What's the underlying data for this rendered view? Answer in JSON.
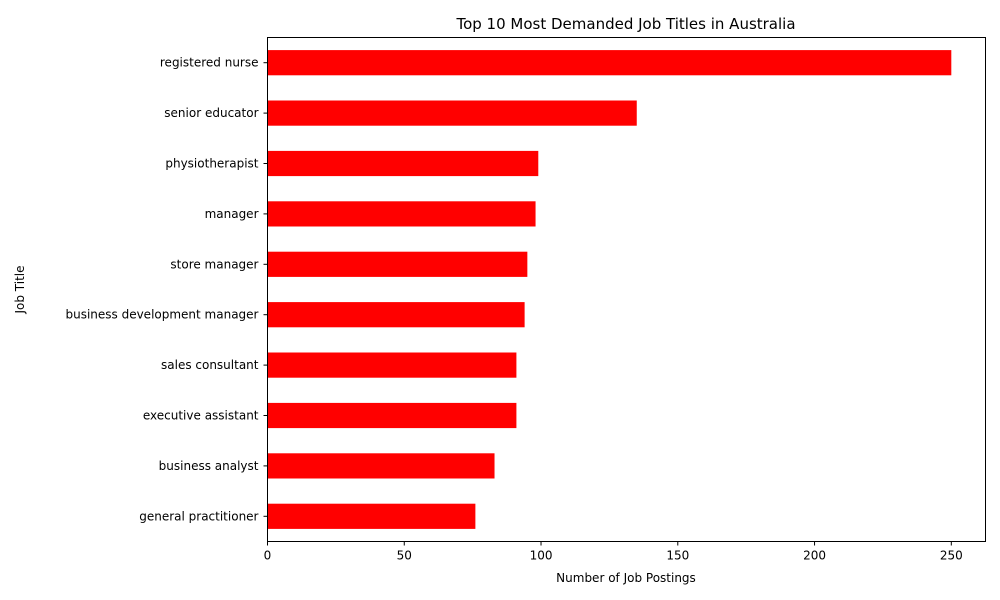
{
  "chart_data": {
    "type": "bar",
    "orientation": "horizontal",
    "title": "Top 10 Most Demanded Job Titles in Australia",
    "xlabel": "Number of Job Postings",
    "ylabel": "Job Title",
    "categories": [
      "registered nurse",
      "senior educator",
      "physiotherapist",
      "manager",
      "store manager",
      "business development manager",
      "sales consultant",
      "executive assistant",
      "business analyst",
      "general practitioner"
    ],
    "values": [
      250,
      135,
      99,
      98,
      95,
      94,
      91,
      91,
      83,
      76
    ],
    "xlim": [
      0,
      262.5
    ],
    "xticks": [
      0,
      50,
      100,
      150,
      200,
      250
    ],
    "bar_color": "#ff0000",
    "grid": false
  }
}
